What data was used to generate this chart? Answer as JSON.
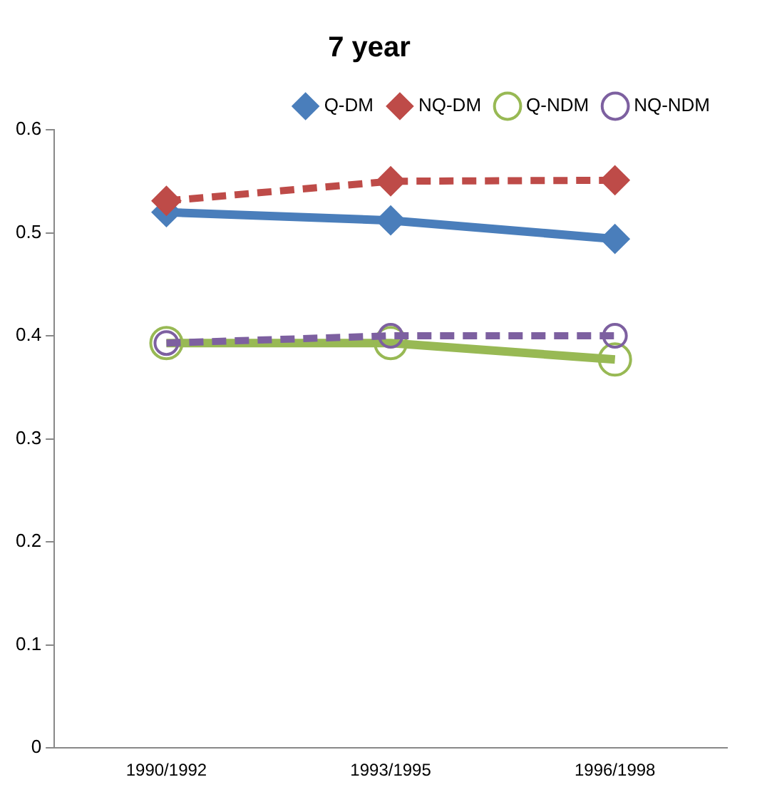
{
  "chart_data": {
    "type": "line",
    "title": "7 year",
    "categories": [
      "1990/1992",
      "1993/1995",
      "1996/1998"
    ],
    "series": [
      {
        "name": "Q-DM",
        "color": "#4a7ebb",
        "values": [
          0.52,
          0.512,
          0.494
        ],
        "marker": "diamond",
        "line_style": "solid"
      },
      {
        "name": "NQ-DM",
        "color": "#be4b48",
        "values": [
          0.531,
          0.55,
          0.551
        ],
        "marker": "diamond",
        "line_style": "dashed"
      },
      {
        "name": "Q-NDM",
        "color": "#98b954",
        "values": [
          0.393,
          0.393,
          0.377
        ],
        "marker": "circle",
        "line_style": "solid"
      },
      {
        "name": "NQ-NDM",
        "color": "#7d60a0",
        "values": [
          0.393,
          0.4,
          0.4
        ],
        "marker": "circle",
        "line_style": "dashed"
      }
    ],
    "ylim": [
      0,
      0.6
    ],
    "yticks": [
      0,
      0.1,
      0.2,
      0.3,
      0.4,
      0.5,
      0.6
    ],
    "grid": false,
    "legend": "top right"
  }
}
